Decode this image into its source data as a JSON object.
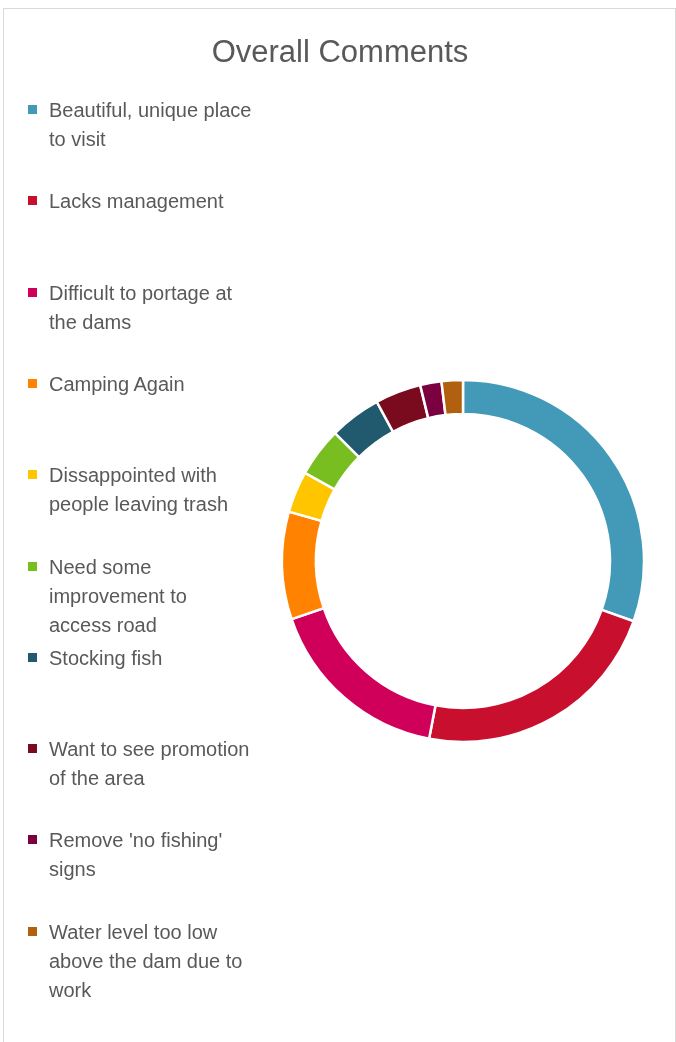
{
  "chart_data": {
    "type": "donut",
    "title": "Overall Comments",
    "categories": [
      "Beautiful, unique place to visit",
      "Lacks management",
      "Difficult to portage at the dams",
      "Camping Again",
      "Dissappointed with people leaving trash",
      "Need some improvement to access road",
      "Stocking fish",
      "Want to see promotion of the area",
      "Remove 'no fishing' signs",
      "Water level too low above the dam due to work"
    ],
    "values": [
      30.4,
      22.6,
      16.8,
      9.6,
      3.7,
      4.4,
      4.6,
      4.1,
      1.9,
      1.9
    ],
    "colors": [
      "#4399b8",
      "#c8102e",
      "#d0005a",
      "#ff8200",
      "#ffc600",
      "#78be20",
      "#215a6e",
      "#7a0a1e",
      "#7a0040",
      "#b0600f"
    ],
    "legend": "left"
  }
}
